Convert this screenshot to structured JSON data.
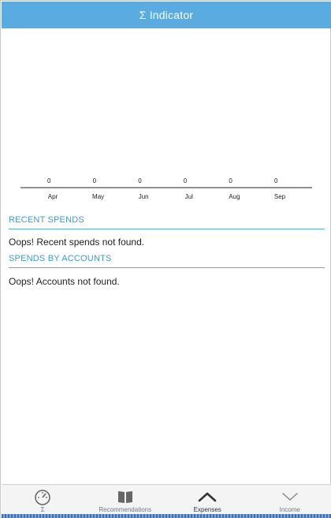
{
  "header": {
    "title": "Σ Indicator"
  },
  "chart_data": {
    "type": "bar",
    "categories": [
      "Apr",
      "May",
      "Jun",
      "Jul",
      "Aug",
      "Sep"
    ],
    "values": [
      0,
      0,
      0,
      0,
      0,
      0
    ],
    "title": "",
    "xlabel": "",
    "ylabel": "",
    "grid": false
  },
  "recent_spends": {
    "title": "RECENT SPENDS",
    "message": "Oops! Recent spends not found."
  },
  "spends_by_accounts": {
    "title": "SPENDS BY ACCOUNTS",
    "message": "Oops! Accounts not found."
  },
  "tabbar": {
    "tabs": [
      {
        "label": "Σ",
        "icon": "speedometer-icon"
      },
      {
        "label": "Recommendations",
        "icon": "book-icon"
      },
      {
        "label": "Expenses",
        "icon": "chevron-up-icon",
        "active": true
      },
      {
        "label": "Income",
        "icon": "chevron-down-icon"
      }
    ]
  },
  "colors": {
    "accent": "#5aace0",
    "section_title": "#3b9bd6"
  }
}
